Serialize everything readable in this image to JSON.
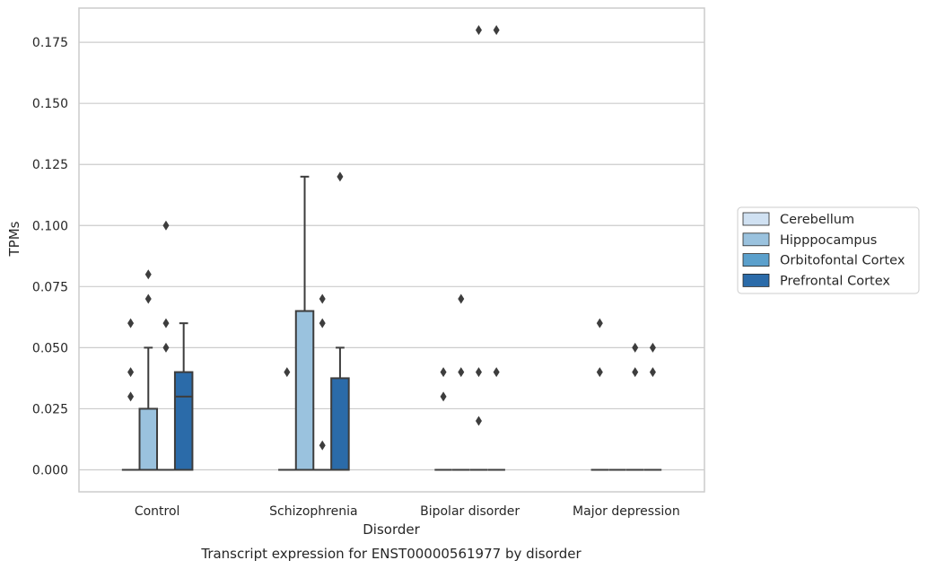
{
  "chart_data": {
    "type": "box",
    "xlabel": "Disorder",
    "ylabel": "TPMs",
    "caption": "Transcript expression for ENST00000561977 by disorder",
    "categories": [
      "Control",
      "Schizophrenia",
      "Bipolar disorder",
      "Major depression"
    ],
    "ylim": [
      -0.009,
      0.189
    ],
    "yticks": [
      0.0,
      0.025,
      0.05,
      0.075,
      0.1,
      0.125,
      0.15,
      0.175
    ],
    "ytick_labels": [
      "0.000",
      "0.025",
      "0.050",
      "0.075",
      "0.100",
      "0.125",
      "0.150",
      "0.175"
    ],
    "grid": "horizontal",
    "legend_position": "right",
    "series": [
      {
        "name": "Cerebellum",
        "color": "#d0e1f2",
        "boxes": [
          {
            "category": "Control",
            "q1": 0.0,
            "median": 0.0,
            "q3": 0.0,
            "whisker_low": 0.0,
            "whisker_high": 0.0,
            "outliers": [
              0.03,
              0.04,
              0.06
            ]
          },
          {
            "category": "Schizophrenia",
            "q1": 0.0,
            "median": 0.0,
            "q3": 0.0,
            "whisker_low": 0.0,
            "whisker_high": 0.0,
            "outliers": [
              0.04
            ]
          },
          {
            "category": "Bipolar disorder",
            "q1": 0.0,
            "median": 0.0,
            "q3": 0.0,
            "whisker_low": 0.0,
            "whisker_high": 0.0,
            "outliers": [
              0.03,
              0.04
            ]
          },
          {
            "category": "Major depression",
            "q1": 0.0,
            "median": 0.0,
            "q3": 0.0,
            "whisker_low": 0.0,
            "whisker_high": 0.0,
            "outliers": [
              0.04,
              0.06
            ]
          }
        ]
      },
      {
        "name": "Hipppocampus",
        "color": "#9ac2de",
        "boxes": [
          {
            "category": "Control",
            "q1": 0.0,
            "median": 0.0,
            "q3": 0.025,
            "whisker_low": 0.0,
            "whisker_high": 0.05,
            "outliers": [
              0.07,
              0.08
            ]
          },
          {
            "category": "Schizophrenia",
            "q1": 0.0,
            "median": 0.0,
            "q3": 0.065,
            "whisker_low": 0.0,
            "whisker_high": 0.12,
            "outliers": []
          },
          {
            "category": "Bipolar disorder",
            "q1": 0.0,
            "median": 0.0,
            "q3": 0.0,
            "whisker_low": 0.0,
            "whisker_high": 0.0,
            "outliers": [
              0.04,
              0.07
            ]
          },
          {
            "category": "Major depression",
            "q1": 0.0,
            "median": 0.0,
            "q3": 0.0,
            "whisker_low": 0.0,
            "whisker_high": 0.0,
            "outliers": []
          }
        ]
      },
      {
        "name": "Orbitofontal Cortex",
        "color": "#5ba0cc",
        "boxes": [
          {
            "category": "Control",
            "q1": 0.0,
            "median": 0.0,
            "q3": 0.0,
            "whisker_low": 0.0,
            "whisker_high": 0.0,
            "outliers": [
              0.05,
              0.06,
              0.1
            ]
          },
          {
            "category": "Schizophrenia",
            "q1": 0.0,
            "median": 0.0,
            "q3": 0.0,
            "whisker_low": 0.0,
            "whisker_high": 0.0,
            "outliers": [
              0.01,
              0.06,
              0.07
            ]
          },
          {
            "category": "Bipolar disorder",
            "q1": 0.0,
            "median": 0.0,
            "q3": 0.0,
            "whisker_low": 0.0,
            "whisker_high": 0.0,
            "outliers": [
              0.02,
              0.04,
              0.18
            ]
          },
          {
            "category": "Major depression",
            "q1": 0.0,
            "median": 0.0,
            "q3": 0.0,
            "whisker_low": 0.0,
            "whisker_high": 0.0,
            "outliers": [
              0.04,
              0.05
            ]
          }
        ]
      },
      {
        "name": "Prefrontal Cortex",
        "color": "#2b6ba9",
        "boxes": [
          {
            "category": "Control",
            "q1": 0.0,
            "median": 0.03,
            "q3": 0.04,
            "whisker_low": 0.0,
            "whisker_high": 0.06,
            "outliers": []
          },
          {
            "category": "Schizophrenia",
            "q1": 0.0,
            "median": 0.0,
            "q3": 0.0375,
            "whisker_low": 0.0,
            "whisker_high": 0.05,
            "outliers": [
              0.12
            ]
          },
          {
            "category": "Bipolar disorder",
            "q1": 0.0,
            "median": 0.0,
            "q3": 0.0,
            "whisker_low": 0.0,
            "whisker_high": 0.0,
            "outliers": [
              0.04,
              0.18
            ]
          },
          {
            "category": "Major depression",
            "q1": 0.0,
            "median": 0.0,
            "q3": 0.0,
            "whisker_low": 0.0,
            "whisker_high": 0.0,
            "outliers": [
              0.04,
              0.05
            ]
          }
        ]
      }
    ]
  },
  "colors": {
    "grid": "#cccccc",
    "frame": "#cccccc",
    "box_edge": "#3d3d3d",
    "text": "#262626"
  }
}
